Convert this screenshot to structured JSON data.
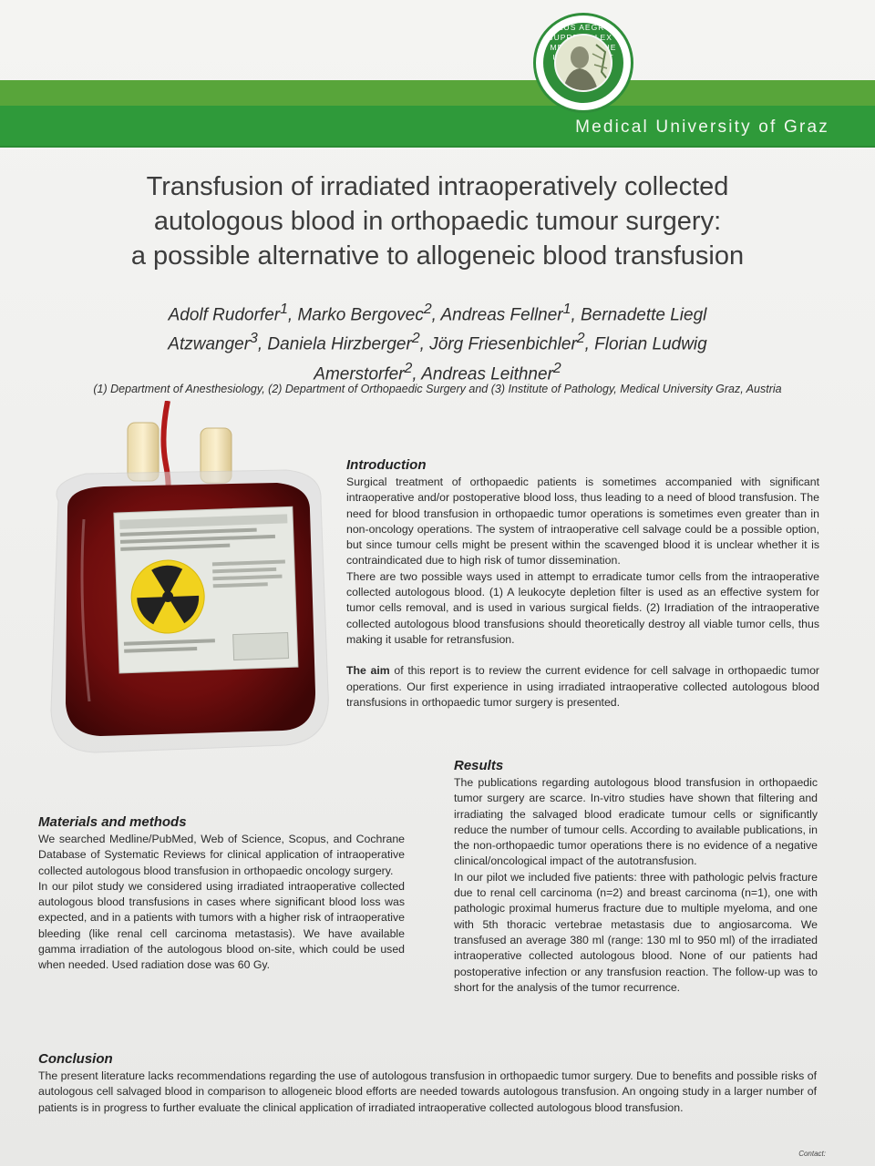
{
  "header": {
    "university": "Medical University of Graz",
    "seal_text": "SALUS AEGROTI SUPREMA LEX · MEDIZINISCHE UNIVERSITÄT GRAZ"
  },
  "title_lines": [
    "Transfusion of irradiated intraoperatively collected",
    "autologous blood in orthopaedic tumour surgery:",
    "a possible alternative to allogeneic blood transfusion"
  ],
  "authors": [
    {
      "name": "Adolf Rudorfer",
      "sup": "1",
      "sep": ", "
    },
    {
      "name": "Marko Bergovec",
      "sup": "2",
      "sep": ", "
    },
    {
      "name": "Andreas Fellner",
      "sup": "1",
      "sep": ", "
    },
    {
      "name": "Bernadette Liegl Atzwanger",
      "sup": "3",
      "sep": ", "
    },
    {
      "name": "Daniela Hirzberger",
      "sup": "2",
      "sep": ", "
    },
    {
      "name": "Jörg Friesenbichler",
      "sup": "2",
      "sep": ", "
    },
    {
      "name": "Florian Ludwig Amerstorfer",
      "sup": "2",
      "sep": ", "
    },
    {
      "name": "Andreas Leithner",
      "sup": "2",
      "sep": ""
    }
  ],
  "affiliations": "(1) Department of Anesthesiology, (2) Department of Orthopaedic Surgery and (3) Institute of Pathology, Medical University Graz, Austria",
  "introduction": {
    "heading": "Introduction",
    "p1": "Surgical treatment of orthopaedic patients is sometimes accompanied with significant intraoperative and/or postoperative blood loss, thus leading to a need of blood transfusion. The need for blood transfusion in orthopaedic tumor operations is sometimes even greater than in non-oncology operations. The system of intraoperative cell salvage could be a possible option, but since tumour cells might be present within the scavenged blood it is unclear whether it is contraindicated due to high risk of tumor dissemination.",
    "p2": "There are two possible ways used in attempt to erradicate tumor cells from the intraoperative collected autologous blood. (1) A leukocyte depletion filter is used as an effective system for tumor cells removal, and is used in various surgical fields. (2) Irradiation of the intraoperative collected autologous blood transfusions should theoretically destroy all viable tumor cells, thus making it usable for retransfusion.",
    "aim_bold": "The aim",
    "aim_rest": " of this report is to review the current evidence for cell salvage in orthopaedic tumor operations. Our first experience in using irradiated intraoperative collected autologous blood transfusions in orthopaedic tumor surgery is presented."
  },
  "results": {
    "heading": "Results",
    "p1": "The publications regarding autologous blood transfusion in orthopaedic tumor surgery are scarce. In-vitro studies have shown that filtering and irradiating the salvaged blood eradicate tumour cells or significantly reduce the number of tumour cells. According to available publications, in the non-orthopaedic tumor operations there is no evidence of a negative clinical/oncological impact of the autotransfusion.",
    "p2": "In our pilot we included five patients: three with pathologic pelvis fracture due to renal cell carcinoma (n=2) and breast carcinoma (n=1), one with pathologic proximal humerus fracture due to multiple myeloma, and one with 5th thoracic vertebrae metastasis due to angiosarcoma. We transfused an average 380 ml (range: 130 ml to 950 ml) of the irradiated intraoperative collected autologous blood. None of our patients had postoperative infection or any transfusion reaction. The follow-up was to short for the analysis of the tumor recurrence."
  },
  "methods": {
    "heading": "Materials and methods",
    "p1": "We searched Medline/PubMed, Web of Science, Scopus, and Cochrane Database of Systematic Reviews for clinical application of intraoperative collected autologous blood transfusion in orthopaedic oncology surgery.",
    "p2": "In our pilot study we considered using irradiated intraoperative collected autologous blood transfusions in cases where significant blood loss was expected, and in a patients with tumors with a higher risk of intraoperative bleeding (like renal cell carcinoma metastasis). We have available gamma irradiation of the autologous blood on-site, which could be used when needed. Used radiation dose was 60 Gy."
  },
  "conclusion": {
    "heading": "Conclusion",
    "p1": "The present literature lacks recommendations regarding the use of autologous transfusion in orthopaedic tumor surgery. Due to benefits and possible risks of autologous cell salvaged blood in comparison to allogeneic blood efforts are needed towards autologous transfusion. An ongoing study in a larger number of patients is in progress to further evaluate the clinical application of irradiated intraoperative collected autologous blood transfusion."
  },
  "contact_label": "Contact:",
  "colors": {
    "green_light": "#58a53a",
    "green_dark": "#2f9a3a",
    "blood": "#6e0d0d"
  }
}
